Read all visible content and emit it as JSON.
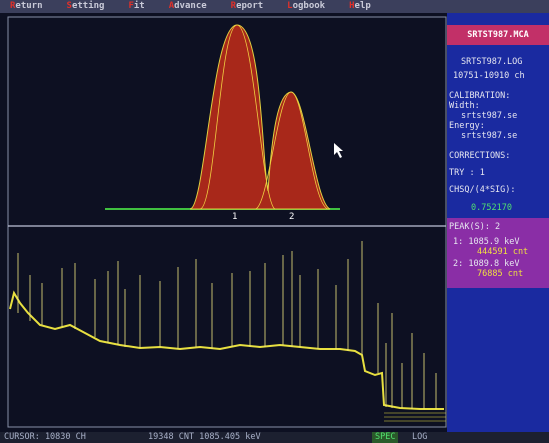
{
  "menu": [
    "Return",
    "Setting",
    "Fit",
    "Advance",
    "Report",
    "Logbook",
    "Help"
  ],
  "plot": {
    "peak_labels": [
      "1",
      "2"
    ]
  },
  "panel": {
    "header": "SRTST987.MCA",
    "log_file": "SRTST987.LOG",
    "channels": "10751-10910 ch",
    "calibration_title": "CALIBRATION:",
    "width_label": "Width:",
    "width_file": "srtst987.se",
    "energy_label": "Energy:",
    "energy_file": "srtst987.se",
    "corrections": "CORRECTIONS:",
    "try": "TRY  : 1",
    "chsq_label": "CHSQ/(4*SIG):",
    "chsq_value": "0.752170",
    "peaks_title": "PEAK(S): 2",
    "peaks": [
      {
        "energy": "1:   1085.9 keV",
        "counts": "444591 cnt"
      },
      {
        "energy": "2:   1089.8 keV",
        "counts": "76885 cnt"
      }
    ]
  },
  "status": {
    "cursor": "CURSOR: 10830 CH",
    "readout": "19348 CNT 1085.405 keV",
    "spec": "SPEC",
    "log": "LOG"
  }
}
